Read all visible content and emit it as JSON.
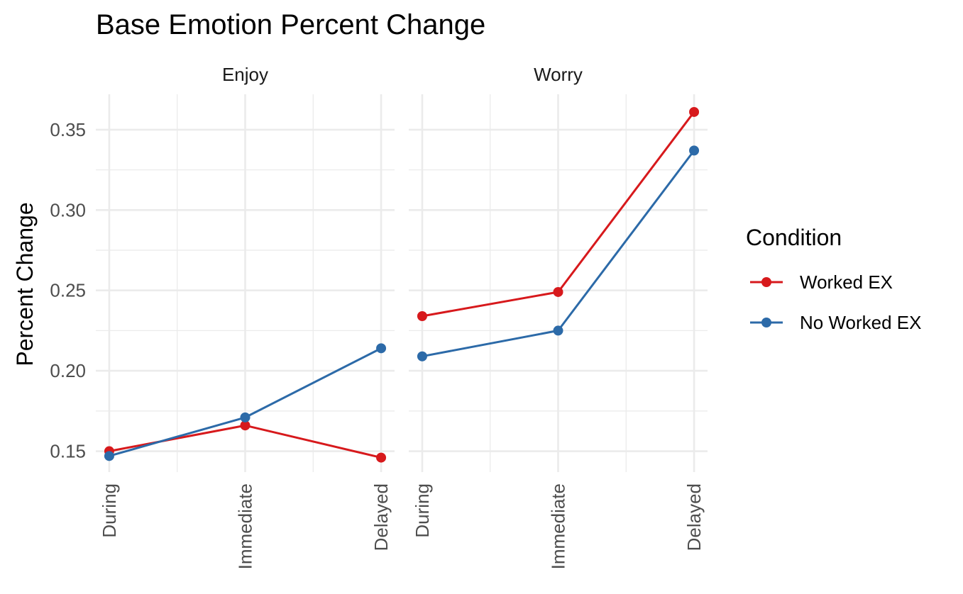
{
  "chart_data": {
    "type": "line",
    "title": "Base Emotion Percent Change",
    "ylabel": "Percent Change",
    "xlabel": "",
    "categories": [
      "During",
      "Immediate",
      "Delayed"
    ],
    "y_ticks": [
      "0.15",
      "0.20",
      "0.25",
      "0.30",
      "0.35"
    ],
    "ylim": [
      0.137,
      0.372
    ],
    "grid": true,
    "legend": {
      "title": "Condition",
      "placement": "right",
      "entries": [
        "Worked EX",
        "No Worked EX"
      ]
    },
    "colors": {
      "Worked EX": "#d7191c",
      "No Worked EX": "#2c6aa8"
    },
    "facets": [
      {
        "label": "Enjoy",
        "series": [
          {
            "name": "Worked EX",
            "values": [
              0.15,
              0.166,
              0.146
            ]
          },
          {
            "name": "No Worked EX",
            "values": [
              0.147,
              0.171,
              0.214
            ]
          }
        ]
      },
      {
        "label": "Worry",
        "series": [
          {
            "name": "Worked EX",
            "values": [
              0.234,
              0.249,
              0.361
            ]
          },
          {
            "name": "No Worked EX",
            "values": [
              0.209,
              0.225,
              0.337
            ]
          }
        ]
      }
    ]
  }
}
